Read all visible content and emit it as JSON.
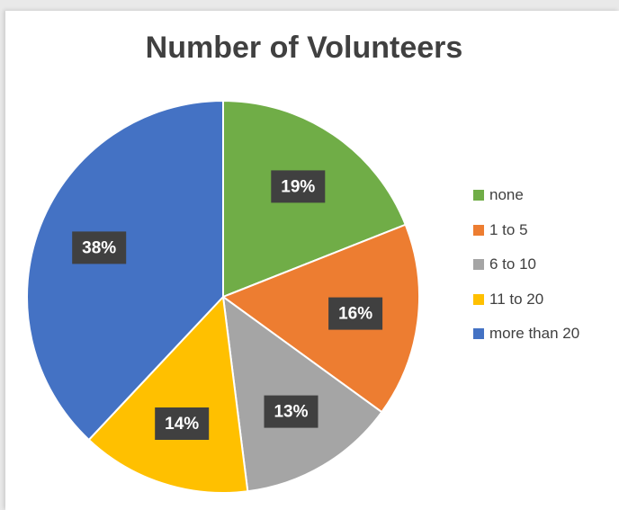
{
  "chart_data": {
    "type": "pie",
    "title": "Number of Volunteers",
    "categories": [
      "none",
      "1 to 5",
      "6 to 10",
      "11 to 20",
      "more than 20"
    ],
    "values": [
      19,
      16,
      13,
      14,
      38
    ],
    "data_labels": [
      "19%",
      "16%",
      "13%",
      "14%",
      "38%"
    ],
    "colors": [
      "#70ad47",
      "#ed7d31",
      "#a5a5a5",
      "#ffc000",
      "#4472c4"
    ],
    "start_angle_deg": 0,
    "direction": "clockwise",
    "legend_position": "right",
    "label_style": "white bold text on dark gray boxes"
  }
}
